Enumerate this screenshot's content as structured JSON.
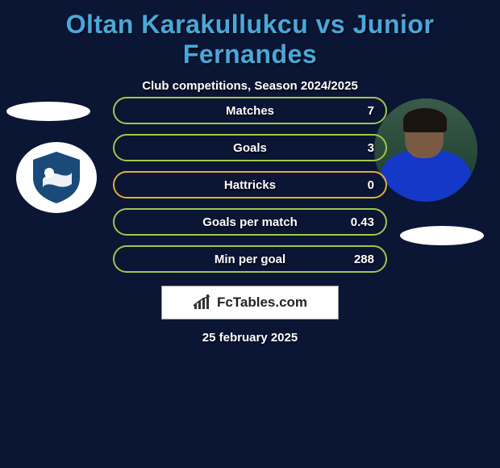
{
  "title": "Oltan Karakullukcu vs Junior Fernandes",
  "subtitle": "Club competitions, Season 2024/2025",
  "background_color": "#0b1534",
  "title_color": "#4aa8d8",
  "text_color": "#ffffff",
  "stats": [
    {
      "label": "Matches",
      "right_value": "7",
      "border_color": "#a0c84a"
    },
    {
      "label": "Goals",
      "right_value": "3",
      "border_color": "#a0c84a"
    },
    {
      "label": "Hattricks",
      "right_value": "0",
      "border_color": "#e0b030"
    },
    {
      "label": "Goals per match",
      "right_value": "0.43",
      "border_color": "#a0c84a"
    },
    {
      "label": "Min per goal",
      "right_value": "288",
      "border_color": "#a0c84a"
    }
  ],
  "branding": {
    "text": "FcTables.com"
  },
  "date": "25 february 2025",
  "club_badge": {
    "shape_color": "#1a4a7a",
    "accent_color": "#ffffff"
  },
  "player_photo": {
    "skin": "#7a5a42",
    "hair": "#1a1410",
    "shirt": "#1438c8"
  }
}
